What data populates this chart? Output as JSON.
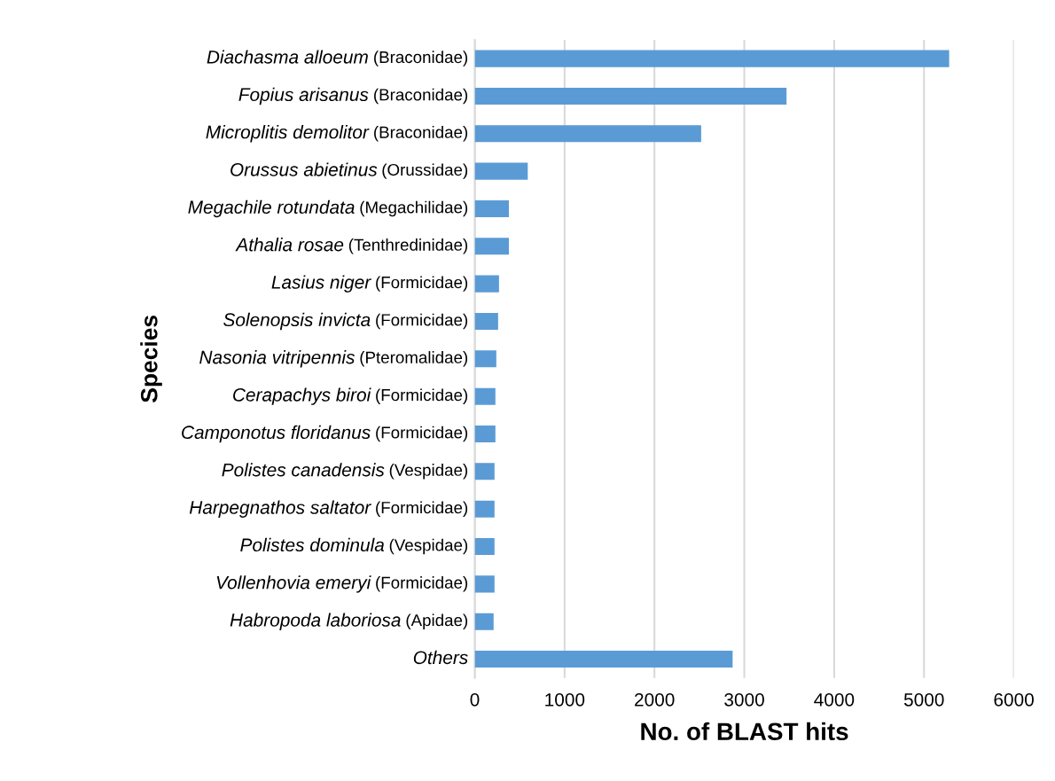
{
  "chart_data": {
    "type": "bar",
    "orientation": "horizontal",
    "xlabel": "No. of BLAST hits",
    "ylabel": "Species",
    "categories": [
      "Diachasma alloeum (Braconidae)",
      "Fopius arisanus (Braconidae)",
      "Microplitis demolitor (Braconidae)",
      "Orussus abietinus (Orussidae)",
      "Megachile rotundata (Megachilidae)",
      "Athalia rosae (Tenthredinidae)",
      "Lasius niger (Formicidae)",
      "Solenopsis invicta (Formicidae)",
      "Nasonia vitripennis (Pteromalidae)",
      "Cerapachys biroi (Formicidae)",
      "Camponotus floridanus (Formicidae)",
      "Polistes canadensis (Vespidae)",
      "Harpegnathos saltator (Formicidae)",
      "Polistes dominula (Vespidae)",
      "Vollenhovia emeryi (Formicidae)",
      "Habropoda laboriosa (Apidae)",
      "Others"
    ],
    "values": [
      5280,
      3470,
      2520,
      590,
      380,
      380,
      270,
      260,
      240,
      230,
      230,
      220,
      220,
      220,
      220,
      210,
      2870
    ],
    "color": "#5b9bd5",
    "xlim": [
      0,
      6000
    ],
    "xticks": [
      0,
      1000,
      2000,
      3000,
      4000,
      5000,
      6000
    ],
    "grid": "x"
  }
}
